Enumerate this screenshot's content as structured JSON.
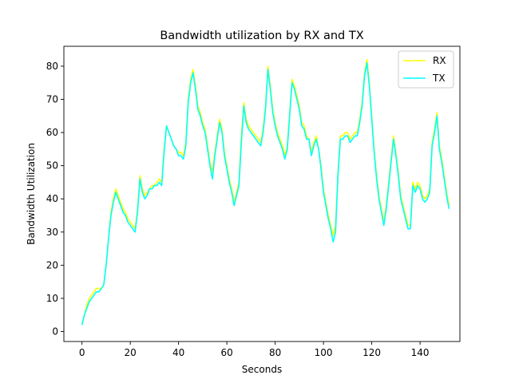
{
  "chart_data": {
    "type": "line",
    "title": "Bandwidth utilization by RX and TX",
    "xlabel": "Seconds",
    "ylabel": "Bandwidth Utilization",
    "xlim": [
      -7.5,
      156.5
    ],
    "ylim": [
      -3,
      86
    ],
    "xticks": [
      0,
      20,
      40,
      60,
      80,
      100,
      120,
      140
    ],
    "yticks": [
      0,
      10,
      20,
      30,
      40,
      50,
      60,
      70,
      80
    ],
    "grid": false,
    "legend_position": "top-right",
    "series": [
      {
        "name": "RX",
        "color": "#ffff00",
        "values": [
          2,
          5,
          8,
          10,
          11,
          12,
          13,
          13,
          13,
          14,
          20,
          28,
          36,
          40,
          43,
          41,
          39,
          37,
          36,
          34,
          33,
          32,
          31,
          37,
          47,
          43,
          41,
          42,
          43,
          44,
          44,
          45,
          46,
          45,
          55,
          62,
          60,
          58,
          56,
          55,
          54,
          54,
          53,
          57,
          70,
          76,
          79,
          74,
          68,
          66,
          63,
          61,
          56,
          51,
          48,
          54,
          59,
          64,
          61,
          54,
          50,
          46,
          43,
          39,
          42,
          45,
          59,
          69,
          64,
          62,
          61,
          60,
          59,
          58,
          57,
          61,
          68,
          80,
          74,
          67,
          63,
          60,
          58,
          56,
          53,
          56,
          66,
          76,
          74,
          71,
          68,
          63,
          62,
          59,
          58,
          54,
          57,
          59,
          55,
          50,
          43,
          39,
          35,
          32,
          29,
          32,
          48,
          59,
          59,
          60,
          60,
          58,
          59,
          60,
          60,
          64,
          69,
          78,
          82,
          75,
          65,
          55,
          47,
          41,
          37,
          33,
          38,
          45,
          52,
          59,
          54,
          48,
          41,
          38,
          35,
          32,
          32,
          45,
          43,
          45,
          44,
          41,
          40,
          41,
          43,
          57,
          61,
          66,
          56,
          52,
          47,
          42,
          38
        ],
        "x_start": 0
      },
      {
        "name": "TX",
        "color": "#00ffff",
        "values": [
          2,
          5,
          7,
          9,
          10,
          11,
          12,
          12,
          13,
          14,
          20,
          28,
          35,
          39,
          42,
          40,
          38,
          36,
          35,
          33,
          32,
          31,
          30,
          36,
          46,
          42,
          40,
          41,
          43,
          43,
          44,
          44,
          45,
          44,
          54,
          62,
          60,
          58,
          56,
          55,
          53,
          53,
          52,
          56,
          69,
          75,
          78,
          73,
          67,
          65,
          62,
          60,
          55,
          50,
          46,
          53,
          58,
          63,
          60,
          53,
          49,
          45,
          42,
          38,
          41,
          44,
          57,
          68,
          63,
          61,
          60,
          59,
          58,
          57,
          56,
          60,
          67,
          79,
          73,
          66,
          62,
          59,
          57,
          55,
          52,
          55,
          65,
          75,
          73,
          70,
          67,
          62,
          61,
          58,
          58,
          53,
          56,
          58,
          55,
          49,
          42,
          38,
          34,
          31,
          27,
          30,
          47,
          58,
          58,
          59,
          59,
          57,
          58,
          59,
          59,
          63,
          68,
          77,
          81,
          74,
          64,
          54,
          46,
          40,
          36,
          32,
          37,
          44,
          51,
          58,
          53,
          47,
          40,
          37,
          34,
          31,
          31,
          44,
          42,
          44,
          43,
          40,
          39,
          40,
          42,
          56,
          60,
          65,
          55,
          51,
          46,
          41,
          37
        ],
        "x_start": 0
      }
    ]
  }
}
